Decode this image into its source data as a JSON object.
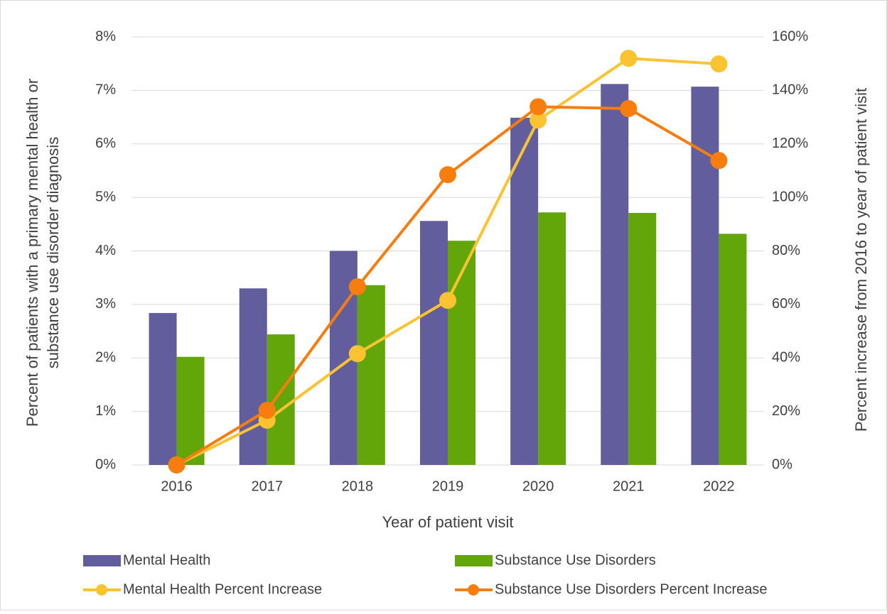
{
  "chart_data": {
    "type": "bar",
    "xlabel": "Year of patient visit",
    "ylabel": [
      "Percent of patients with a primary mental health or",
      "substance use disorder diagnosis"
    ],
    "y2label": "Percent increase from 2016 to year of patient visit",
    "categories": [
      "2016",
      "2017",
      "2018",
      "2019",
      "2020",
      "2021",
      "2022"
    ],
    "series": [
      {
        "name": "Mental Health",
        "type": "bar",
        "color": "#625d9c",
        "values": [
          2.84,
          3.3,
          4.0,
          4.56,
          6.49,
          7.12,
          7.07
        ]
      },
      {
        "name": "Substance Use Disorders",
        "type": "bar",
        "color": "#63a60a",
        "values": [
          2.02,
          2.44,
          3.36,
          4.19,
          4.72,
          4.71,
          4.32
        ]
      },
      {
        "name": "Mental Health Percent Increase",
        "type": "line",
        "axis": "y2",
        "color": "#fcc330",
        "values": [
          0,
          16.7,
          41.6,
          61.5,
          128.9,
          152,
          149.9
        ]
      },
      {
        "name": "Substance Use Disorders Percent Increase",
        "type": "line",
        "axis": "y2",
        "color": "#f77d0f",
        "values": [
          0,
          20.4,
          66.6,
          108.5,
          133.9,
          133.2,
          113.8
        ]
      }
    ],
    "ylim": [
      0,
      8
    ],
    "yticks": [
      {
        "value": 0,
        "label": "0%"
      },
      {
        "value": 1,
        "label": "1%"
      },
      {
        "value": 2,
        "label": "2%"
      },
      {
        "value": 3,
        "label": "3%"
      },
      {
        "value": 4,
        "label": "4%"
      },
      {
        "value": 5,
        "label": "5%"
      },
      {
        "value": 6,
        "label": "6%"
      },
      {
        "value": 7,
        "label": "7%"
      },
      {
        "value": 8,
        "label": "8%"
      }
    ],
    "y2lim": [
      0,
      160
    ],
    "y2ticks": [
      {
        "value": 0,
        "label": "0%"
      },
      {
        "value": 20,
        "label": "20%"
      },
      {
        "value": 40,
        "label": "40%"
      },
      {
        "value": 60,
        "label": "60%"
      },
      {
        "value": 80,
        "label": "80%"
      },
      {
        "value": 100,
        "label": "100%"
      },
      {
        "value": 120,
        "label": "120%"
      },
      {
        "value": 140,
        "label": "140%"
      },
      {
        "value": 160,
        "label": "160%"
      }
    ],
    "grid": true,
    "legend": "bottom"
  }
}
